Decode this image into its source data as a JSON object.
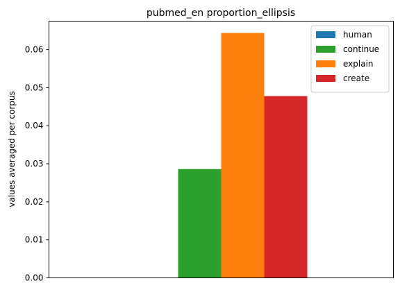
{
  "chart_data": {
    "type": "bar",
    "title": "pubmed_en proportion_ellipsis",
    "xlabel": "",
    "ylabel": "values averaged per corpus",
    "categories": [
      ""
    ],
    "ylim": [
      0,
      0.0675
    ],
    "yticks": [
      "0.00",
      "0.01",
      "0.02",
      "0.03",
      "0.04",
      "0.05",
      "0.06"
    ],
    "grid": false,
    "legend_position": "top-right",
    "series": [
      {
        "name": "human",
        "values": [
          0.0
        ],
        "color": "#1f77b4"
      },
      {
        "name": "continue",
        "values": [
          0.0286
        ],
        "color": "#2ca02c"
      },
      {
        "name": "explain",
        "values": [
          0.0644
        ],
        "color": "#ff7f0e"
      },
      {
        "name": "create",
        "values": [
          0.0478
        ],
        "color": "#d62728"
      }
    ]
  }
}
